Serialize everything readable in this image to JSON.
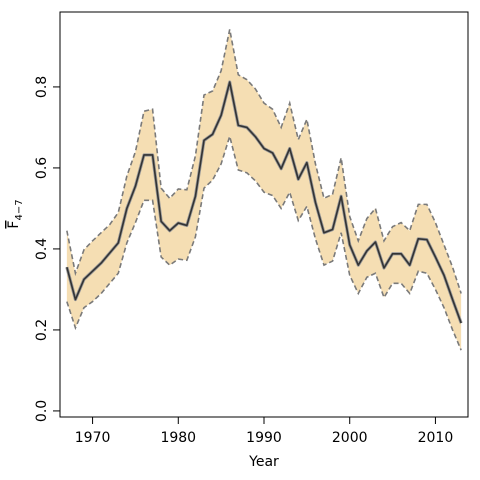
{
  "chart_data": {
    "type": "line",
    "title": "",
    "xlabel": "Year",
    "ylabel_main": "F",
    "ylabel_sub": "4−7",
    "xlim": [
      1966.2,
      2013.8
    ],
    "ylim": [
      -0.015,
      0.985
    ],
    "xticks": [
      1970,
      1980,
      1990,
      2000,
      2010
    ],
    "xtick_labels": [
      "1970",
      "1980",
      "1990",
      "2000",
      "2010"
    ],
    "yticks": [
      0.0,
      0.2,
      0.4,
      0.6,
      0.8
    ],
    "ytick_labels": [
      "0.0",
      "0.2",
      "0.4",
      "0.6",
      "0.8"
    ],
    "colors": {
      "band": "#f5deb3",
      "band_edge": "#7a7a7a",
      "line": "#333333"
    },
    "x": [
      1967,
      1968,
      1969,
      1970,
      1971,
      1972,
      1973,
      1974,
      1975,
      1976,
      1977,
      1978,
      1979,
      1980,
      1981,
      1982,
      1983,
      1984,
      1985,
      1986,
      1987,
      1988,
      1989,
      1990,
      1991,
      1992,
      1993,
      1994,
      1995,
      1996,
      1997,
      1998,
      1999,
      2000,
      2001,
      2002,
      2003,
      2004,
      2005,
      2006,
      2007,
      2008,
      2009,
      2010,
      2011,
      2012,
      2013
    ],
    "series": [
      {
        "role": "estimate",
        "values": [
          0.355,
          0.275,
          0.325,
          0.345,
          0.365,
          0.39,
          0.415,
          0.5,
          0.555,
          0.632,
          0.632,
          0.468,
          0.445,
          0.464,
          0.458,
          0.53,
          0.668,
          0.683,
          0.73,
          0.812,
          0.705,
          0.7,
          0.677,
          0.648,
          0.637,
          0.598,
          0.648,
          0.572,
          0.613,
          0.515,
          0.44,
          0.448,
          0.53,
          0.41,
          0.36,
          0.395,
          0.417,
          0.353,
          0.388,
          0.388,
          0.36,
          0.425,
          0.423,
          0.38,
          0.335,
          0.275,
          0.217
        ]
      },
      {
        "role": "upper",
        "values": [
          0.445,
          0.34,
          0.398,
          0.42,
          0.44,
          0.46,
          0.49,
          0.58,
          0.64,
          0.74,
          0.745,
          0.55,
          0.525,
          0.548,
          0.546,
          0.63,
          0.78,
          0.79,
          0.84,
          0.942,
          0.83,
          0.818,
          0.795,
          0.76,
          0.745,
          0.7,
          0.76,
          0.67,
          0.72,
          0.61,
          0.525,
          0.535,
          0.625,
          0.48,
          0.42,
          0.475,
          0.5,
          0.42,
          0.455,
          0.465,
          0.445,
          0.51,
          0.51,
          0.465,
          0.41,
          0.355,
          0.29
        ]
      },
      {
        "role": "lower",
        "values": [
          0.27,
          0.205,
          0.255,
          0.27,
          0.29,
          0.315,
          0.34,
          0.415,
          0.465,
          0.52,
          0.52,
          0.38,
          0.36,
          0.375,
          0.372,
          0.43,
          0.55,
          0.57,
          0.61,
          0.678,
          0.595,
          0.588,
          0.568,
          0.54,
          0.532,
          0.5,
          0.54,
          0.47,
          0.505,
          0.425,
          0.36,
          0.37,
          0.44,
          0.335,
          0.29,
          0.33,
          0.34,
          0.28,
          0.315,
          0.315,
          0.29,
          0.345,
          0.34,
          0.3,
          0.255,
          0.2,
          0.15
        ]
      }
    ]
  }
}
